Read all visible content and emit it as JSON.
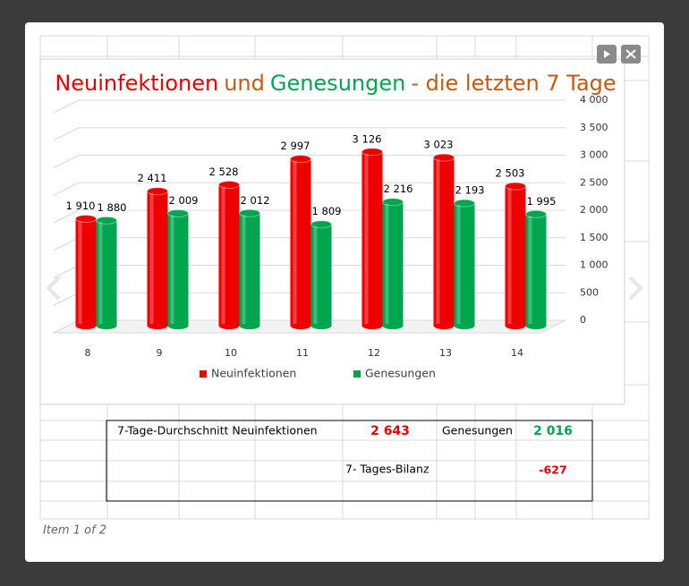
{
  "chart_data": {
    "type": "bar",
    "title_parts": [
      {
        "text": "Neuinfektionen",
        "color": "#e60000"
      },
      {
        "text": "und",
        "color": "#c55a11"
      },
      {
        "text": "Genesungen",
        "color": "#00a550"
      },
      {
        "text": "- die letzten 7 Tage",
        "color": "#c55a11"
      }
    ],
    "categories": [
      "8",
      "9",
      "10",
      "11",
      "12",
      "13",
      "14"
    ],
    "series": [
      {
        "name": "Neuinfektionen",
        "color": "#ee0000",
        "values": [
          1910,
          2411,
          2528,
          2997,
          3126,
          3023,
          2503
        ],
        "value_labels": [
          "1 910",
          "2 411",
          "2 528",
          "2 997",
          "3 126",
          "3 023",
          "2 503"
        ]
      },
      {
        "name": "Genesungen",
        "color": "#00a550",
        "values": [
          1880,
          2009,
          2012,
          1809,
          2216,
          2193,
          1995
        ],
        "value_labels": [
          "1 880",
          "2 009",
          "2 012",
          "1 809",
          "2 216",
          "2 193",
          "1 995"
        ]
      }
    ],
    "ylim": [
      0,
      4000
    ],
    "yticks": [
      0,
      500,
      {
        "value": 1000,
        "label": "1 000"
      },
      {
        "value": 1500,
        "label": "1 500"
      },
      {
        "value": 2000,
        "label": "2 000"
      },
      {
        "value": 2500,
        "label": "2 500"
      },
      {
        "value": 3000,
        "label": "3 000"
      },
      {
        "value": 3500,
        "label": "3 500"
      },
      {
        "value": 4000,
        "label": "4 000"
      }
    ],
    "grid": true
  },
  "table": {
    "rows": [
      [
        "7-Tage-Durchschnitt Neuinfektionen",
        "2 643",
        "Genesungen",
        "2 016"
      ],
      [
        "7- Tages-Bilanz",
        "-627"
      ]
    ]
  },
  "caption": "Item 1 of 2"
}
